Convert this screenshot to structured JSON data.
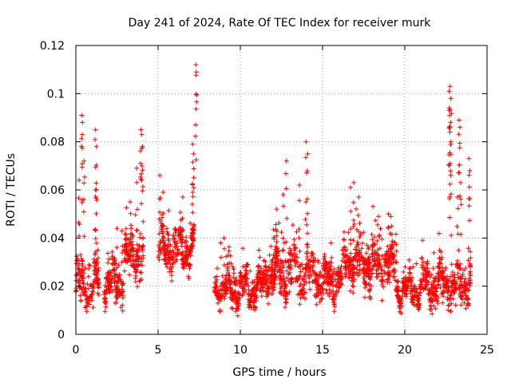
{
  "chart_data": {
    "type": "scatter",
    "title": "Day 241 of 2024, Rate Of TEC Index for receiver murk",
    "xlabel": "GPS time / hours",
    "ylabel": "ROTI / TECUs",
    "xlim": [
      0,
      25
    ],
    "ylim": [
      0,
      0.12
    ],
    "x_ticks": [
      0,
      5,
      10,
      15,
      20,
      25
    ],
    "x_tick_labels": [
      "0",
      "5",
      "10",
      "15",
      "20",
      "25"
    ],
    "y_ticks": [
      0,
      0.02,
      0.04,
      0.06,
      0.08,
      0.1,
      0.12
    ],
    "y_tick_labels": [
      "0",
      "0.02",
      "0.04",
      "0.06",
      "0.08",
      "0.1",
      "0.12"
    ],
    "grid": true,
    "marker": "plus",
    "color": "#ff0000",
    "series": [
      {
        "name": "ROTI",
        "segments": [
          {
            "t_start": 0.0,
            "t_end": 1.4,
            "base": 0.021,
            "spread": 0.012,
            "spikes": [
              [
                0.2,
                0.064
              ],
              [
                0.35,
                0.091
              ],
              [
                0.4,
                0.088
              ],
              [
                0.5,
                0.072
              ],
              [
                1.2,
                0.085
              ],
              [
                1.25,
                0.078
              ],
              [
                1.2,
                0.06
              ]
            ]
          },
          {
            "t_start": 1.7,
            "t_end": 2.9,
            "base": 0.022,
            "spread": 0.011,
            "spikes": [
              [
                2.5,
                0.044
              ],
              [
                2.8,
                0.043
              ]
            ]
          },
          {
            "t_start": 2.9,
            "t_end": 4.1,
            "base": 0.032,
            "spread": 0.012,
            "spikes": [
              [
                3.3,
                0.055
              ],
              [
                3.7,
                0.069
              ],
              [
                3.95,
                0.085
              ],
              [
                4.0,
                0.083
              ],
              [
                4.05,
                0.078
              ]
            ]
          },
          {
            "t_start": 5.0,
            "t_end": 7.2,
            "base": 0.036,
            "spread": 0.011,
            "spikes": [
              [
                5.1,
                0.066
              ],
              [
                5.3,
                0.059
              ],
              [
                6.5,
                0.057
              ],
              [
                7.1,
                0.079
              ],
              [
                7.15,
                0.075
              ],
              [
                7.3,
                0.112
              ],
              [
                7.32,
                0.109
              ],
              [
                7.1,
                0.059
              ]
            ]
          },
          {
            "t_start": 8.4,
            "t_end": 11.5,
            "base": 0.019,
            "spread": 0.008,
            "spikes": [
              [
                8.8,
                0.038
              ],
              [
                9.0,
                0.04
              ]
            ]
          },
          {
            "t_start": 11.5,
            "t_end": 14.7,
            "base": 0.025,
            "spread": 0.012,
            "spikes": [
              [
                12.2,
                0.052
              ],
              [
                12.6,
                0.058
              ],
              [
                12.8,
                0.072
              ],
              [
                13.6,
                0.062
              ],
              [
                14.0,
                0.08
              ],
              [
                14.1,
                0.075
              ]
            ]
          },
          {
            "t_start": 14.7,
            "t_end": 16.2,
            "base": 0.022,
            "spread": 0.01,
            "spikes": [
              [
                15.5,
                0.038
              ]
            ]
          },
          {
            "t_start": 16.2,
            "t_end": 19.5,
            "base": 0.029,
            "spread": 0.012,
            "spikes": [
              [
                16.7,
                0.061
              ],
              [
                16.9,
                0.063
              ],
              [
                17.2,
                0.057
              ],
              [
                18.4,
                0.049
              ],
              [
                19.0,
                0.05
              ]
            ]
          },
          {
            "t_start": 19.5,
            "t_end": 21.0,
            "base": 0.018,
            "spread": 0.006,
            "spikes": [
              [
                20.5,
                0.028
              ]
            ]
          },
          {
            "t_start": 21.0,
            "t_end": 24.0,
            "base": 0.021,
            "spread": 0.011,
            "spikes": [
              [
                22.7,
                0.101
              ],
              [
                22.75,
                0.103
              ],
              [
                22.8,
                0.098
              ],
              [
                22.7,
                0.094
              ],
              [
                22.8,
                0.08
              ],
              [
                22.75,
                0.071
              ],
              [
                23.3,
                0.089
              ],
              [
                23.35,
                0.086
              ],
              [
                23.4,
                0.063
              ],
              [
                23.9,
                0.073
              ],
              [
                23.95,
                0.068
              ],
              [
                23.2,
                0.057
              ]
            ]
          }
        ]
      }
    ]
  }
}
